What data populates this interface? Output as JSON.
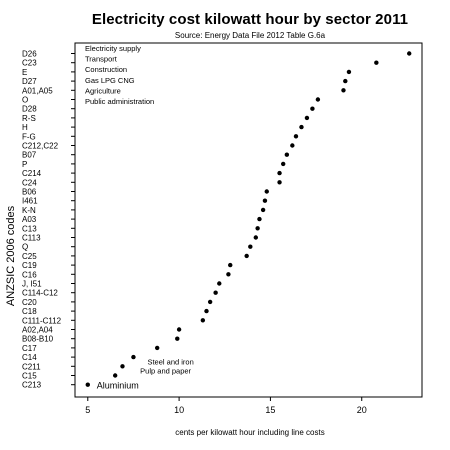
{
  "chart_data": {
    "type": "scatter",
    "title": "Electricity cost kilowatt hour by sector 2011",
    "subtitle": "Source: Energy Data File 2012 Table G.6a",
    "xlabel": "cents per kilowatt hour including line costs",
    "ylabel": "ANZSIC 2006 codes",
    "xlim": [
      4.3,
      23.3
    ],
    "xticks": [
      5,
      10,
      15,
      20
    ],
    "grid": false,
    "legend_position": "top-left",
    "marker_color": "#000000",
    "legend_entries": [
      "Electricity supply",
      "Transport",
      "Construction",
      "Gas LPG CNG",
      "Agriculture",
      "Public administration"
    ],
    "categories": [
      "D26",
      "C23",
      "E",
      "D27",
      "A01,A05",
      "O",
      "D28",
      "R-S",
      "H",
      "F-G",
      "C212,C22",
      "B07",
      "P",
      "C214",
      "C24",
      "B06",
      "I461",
      "K-N",
      "A03",
      "C13",
      "C113",
      "Q",
      "C25",
      "C19",
      "C16",
      "J, I51",
      "C114-C12",
      "C20",
      "C18",
      "C111-C112",
      "A02,A04",
      "B08-B10",
      "C17",
      "C14",
      "C211",
      "C15",
      "C213"
    ],
    "values": [
      22.6,
      20.8,
      19.3,
      19.1,
      19.0,
      17.6,
      17.3,
      17.0,
      16.7,
      16.4,
      16.2,
      15.9,
      15.7,
      15.5,
      15.5,
      14.8,
      14.7,
      14.6,
      14.4,
      14.3,
      14.2,
      13.9,
      13.7,
      12.8,
      12.7,
      12.2,
      12.0,
      11.7,
      11.5,
      11.3,
      10.0,
      9.9,
      8.8,
      7.5,
      6.9,
      6.5,
      5.0
    ],
    "annotations": [
      {
        "text": "Steel and iron",
        "category": "C211"
      },
      {
        "text": "Pulp and paper",
        "category": "C15"
      },
      {
        "text": "Aluminium",
        "category": "C213"
      }
    ]
  }
}
